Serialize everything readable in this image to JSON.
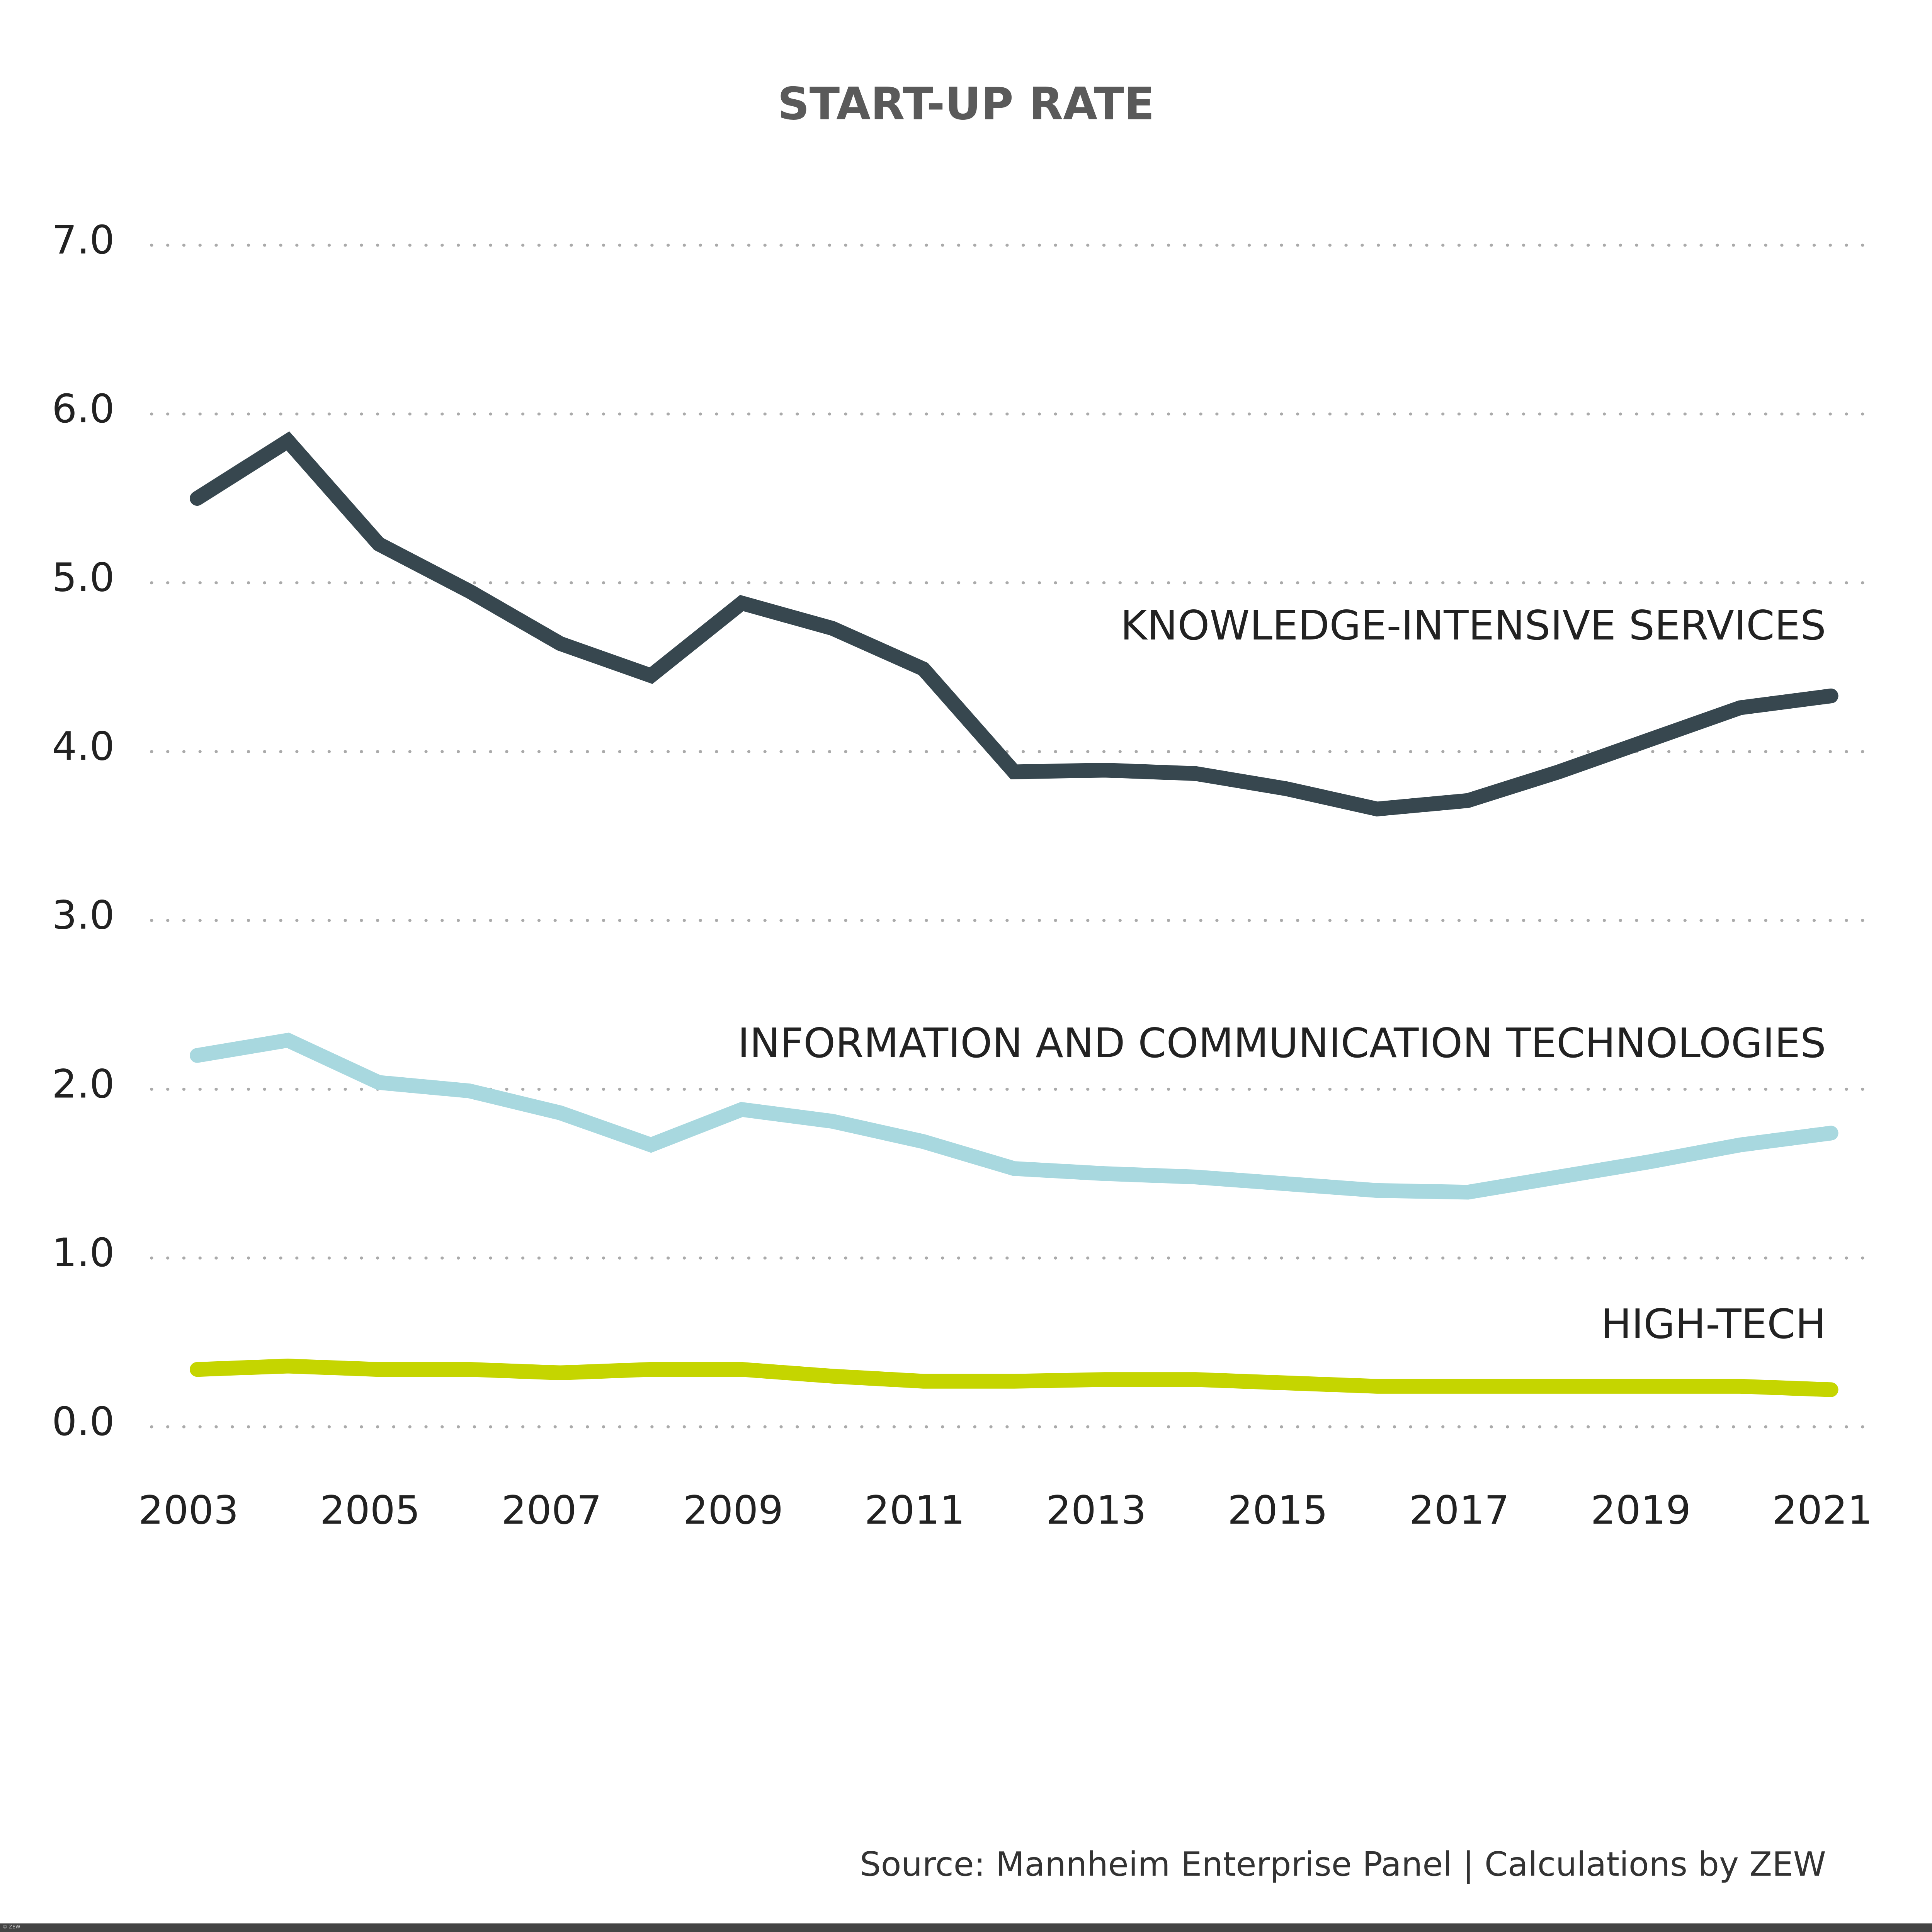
{
  "chart_data": {
    "type": "line",
    "title": "START-UP RATE",
    "source": "Source: Mannheim Enterprise Panel | Calculations by ZEW",
    "copyright": "© ZEW",
    "x": [
      2003,
      2004,
      2005,
      2006,
      2007,
      2008,
      2009,
      2010,
      2011,
      2012,
      2013,
      2014,
      2015,
      2016,
      2017,
      2018,
      2019,
      2020,
      2021
    ],
    "xlim": [
      2003,
      2021
    ],
    "xticks": [
      2003,
      2005,
      2007,
      2009,
      2011,
      2013,
      2015,
      2017,
      2019,
      2021
    ],
    "ylim": [
      0,
      7
    ],
    "yticks": [
      {
        "value": 0,
        "label": "0.0"
      },
      {
        "value": 1,
        "label": "1.0"
      },
      {
        "value": 2,
        "label": "2.0"
      },
      {
        "value": 3,
        "label": "3.0"
      },
      {
        "value": 4,
        "label": "4.0"
      },
      {
        "value": 5,
        "label": "5.0"
      },
      {
        "value": 6,
        "label": "6.0"
      },
      {
        "value": 7,
        "label": "7.0"
      }
    ],
    "grid": true,
    "series": [
      {
        "name": "KNOWLEDGE-INTENSIVE SERVICES",
        "color": "#37474f",
        "values": [
          5.5,
          5.84,
          5.23,
          4.95,
          4.64,
          4.45,
          4.88,
          4.73,
          4.49,
          3.88,
          3.89,
          3.87,
          3.78,
          3.66,
          3.71,
          3.88,
          4.07,
          4.26,
          4.33
        ]
      },
      {
        "name": "INFORMATION AND COMMUNICATION TECHNOLOGIES",
        "color": "#a8d8df",
        "values": [
          2.2,
          2.29,
          2.04,
          1.99,
          1.86,
          1.67,
          1.88,
          1.81,
          1.69,
          1.53,
          1.5,
          1.48,
          1.44,
          1.4,
          1.39,
          1.48,
          1.57,
          1.67,
          1.74
        ]
      },
      {
        "name": "HIGH-TECH",
        "color": "#c5d500",
        "values": [
          0.34,
          0.36,
          0.34,
          0.34,
          0.32,
          0.34,
          0.34,
          0.3,
          0.27,
          0.27,
          0.28,
          0.28,
          0.26,
          0.24,
          0.24,
          0.24,
          0.24,
          0.24,
          0.22
        ]
      }
    ]
  }
}
